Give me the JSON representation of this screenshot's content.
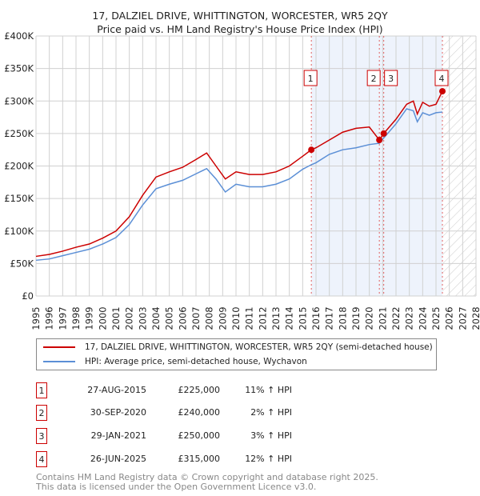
{
  "chart_data": {
    "type": "line",
    "title": "17, DALZIEL DRIVE, WHITTINGTON, WORCESTER, WR5 2QY",
    "subtitle": "Price paid vs. HM Land Registry's House Price Index (HPI)",
    "ylim": [
      0,
      400000
    ],
    "xlim": [
      1995,
      2028
    ],
    "y_ticks": [
      "£0",
      "£50K",
      "£100K",
      "£150K",
      "£200K",
      "£250K",
      "£300K",
      "£350K",
      "£400K"
    ],
    "x_ticks": [
      "1995",
      "1996",
      "1997",
      "1998",
      "1999",
      "2000",
      "2001",
      "2002",
      "2003",
      "2004",
      "2005",
      "2006",
      "2007",
      "2008",
      "2009",
      "2010",
      "2011",
      "2012",
      "2013",
      "2014",
      "2015",
      "2016",
      "2017",
      "2018",
      "2019",
      "2020",
      "2021",
      "2022",
      "2023",
      "2024",
      "2025",
      "2026",
      "2027",
      "2028"
    ],
    "x": [
      1995,
      1996,
      1997,
      1998,
      1999,
      2000,
      2001,
      2002,
      2003,
      2004,
      2005,
      2006,
      2007,
      2007.8,
      2008.5,
      2009.2,
      2010,
      2011,
      2012,
      2013,
      2014,
      2015,
      2015.65,
      2016,
      2017,
      2018,
      2019,
      2020,
      2020.75,
      2021.08,
      2022,
      2022.8,
      2023.3,
      2023.6,
      2024,
      2024.5,
      2025,
      2025.48
    ],
    "series": [
      {
        "name": "17, DALZIEL DRIVE, WHITTINGTON, WORCESTER, WR5 2QY (semi-detached house)",
        "color": "#cc0000",
        "values": [
          61000,
          64000,
          69000,
          75000,
          80000,
          89000,
          100000,
          122000,
          155000,
          183000,
          191000,
          198000,
          210000,
          220000,
          200000,
          180000,
          191000,
          187000,
          187000,
          191000,
          200000,
          215000,
          225000,
          228000,
          240000,
          252000,
          258000,
          260000,
          240000,
          250000,
          272000,
          295000,
          300000,
          280000,
          298000,
          292000,
          295000,
          315000
        ]
      },
      {
        "name": "HPI: Average price, semi-detached house, Wychavon",
        "color": "#5b8fd6",
        "values": [
          55000,
          57000,
          62000,
          67000,
          72000,
          80000,
          90000,
          110000,
          140000,
          165000,
          172000,
          178000,
          188000,
          196000,
          180000,
          160000,
          172000,
          168000,
          168000,
          172000,
          180000,
          195000,
          202000,
          205000,
          218000,
          225000,
          228000,
          233000,
          235000,
          243000,
          265000,
          288000,
          285000,
          268000,
          282000,
          278000,
          282000,
          283000
        ]
      }
    ],
    "sales": [
      {
        "label": "1",
        "x": 2015.65,
        "value": 225000
      },
      {
        "label": "2",
        "x": 2020.75,
        "value": 240000
      },
      {
        "label": "3",
        "x": 2021.08,
        "value": 250000
      },
      {
        "label": "4",
        "x": 2025.48,
        "value": 315000
      }
    ],
    "legend_placement": "bottom"
  },
  "table": [
    {
      "n": "1",
      "date": "27-AUG-2015",
      "price": "£225,000",
      "hpi": "11% ↑ HPI"
    },
    {
      "n": "2",
      "date": "30-SEP-2020",
      "price": "£240,000",
      "hpi": "2% ↑ HPI"
    },
    {
      "n": "3",
      "date": "29-JAN-2021",
      "price": "£250,000",
      "hpi": "3% ↑ HPI"
    },
    {
      "n": "4",
      "date": "26-JUN-2025",
      "price": "£315,000",
      "hpi": "12% ↑ HPI"
    }
  ],
  "footer": [
    "Contains HM Land Registry data © Crown copyright and database right 2025.",
    "This data is licensed under the Open Government Licence v3.0."
  ]
}
